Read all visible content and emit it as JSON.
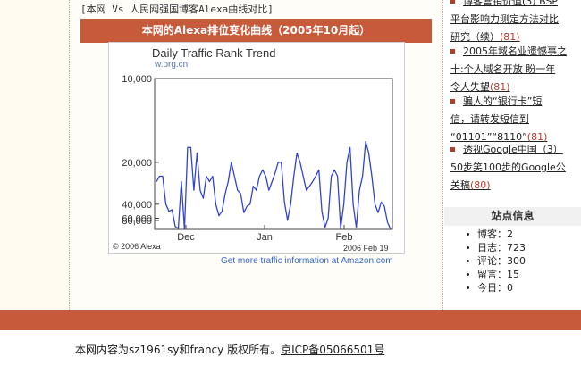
{
  "main": {
    "compare_caption": "[本网 Vs 人民网强国博客Alexa曲线对比]",
    "section_title": "本网的Alexa排位变化曲线（2005年10月起）",
    "more_link": "Get more traffic information at Amazon.com"
  },
  "chart_data": {
    "type": "line",
    "title": "Daily Traffic Rank Trend",
    "subtitle": "w.org.cn",
    "y_tick_labels": [
      "10,000",
      "20,000",
      "40,000",
      "60,000",
      "80,000"
    ],
    "y_tick_values": [
      10000,
      20000,
      40000,
      60000,
      80000
    ],
    "y_scale": "reciprocal",
    "y_inverted": true,
    "x_tick_labels": [
      "Dec",
      "Jan",
      "Feb"
    ],
    "copyright": "© 2006 Alexa",
    "date_label": "2006 Feb 19",
    "line_color": "#3344cc",
    "series": [
      {
        "values": [
          26000,
          24000,
          24000,
          40000,
          48000,
          46000,
          85000,
          95000,
          26000,
          100000,
          17000,
          17000,
          30000,
          18000,
          30000,
          35000,
          24000,
          26000,
          24000,
          40000,
          55000,
          48000,
          32000,
          26000,
          20000,
          24000,
          30000,
          32000,
          50000,
          42000,
          40000,
          28000,
          30000,
          24000,
          22000,
          24000,
          30000,
          26000,
          23000,
          20000,
          20000,
          38000,
          65000,
          40000,
          24000,
          18000,
          20000,
          24000,
          30000,
          28000,
          26000,
          24000,
          22000,
          48000,
          90000,
          60000,
          24000,
          22000,
          24000,
          95000,
          40000,
          20000,
          17000,
          40000,
          90000,
          30000,
          24000,
          16000,
          18000,
          24000,
          40000,
          50000,
          38000,
          42000,
          70000,
          100000
        ]
      }
    ]
  },
  "sidebar": {
    "items": [
      {
        "lines": [
          "博客营销价值(3) BSP",
          "平台影响力测定方法对比",
          "研究（续）"
        ],
        "count": "(81)"
      },
      {
        "lines": [
          "2005年域名业遗憾事之",
          "十:个人域名开放 盼一年",
          "令人失望"
        ],
        "count": "(81)"
      },
      {
        "lines": [
          "骗人的“银行卡”短",
          "信，请转发短信到",
          "“01101”“8110”"
        ],
        "count": "(81)"
      },
      {
        "lines": [
          "透视Google中国（3）",
          "50步笑100步的Google公",
          "关稿"
        ],
        "count": "(80)"
      }
    ],
    "stats_title": "站点信息",
    "stats": [
      {
        "label": "博客：",
        "value": "2"
      },
      {
        "label": "日志：",
        "value": "723"
      },
      {
        "label": "评论：",
        "value": "300"
      },
      {
        "label": "留言：",
        "value": "15"
      },
      {
        "label": "今日：",
        "value": "0"
      }
    ]
  },
  "footer": {
    "text": "本网内容为sz1961sy和francy 版权所有。",
    "icp_link": "京ICP备05066501号"
  },
  "colors": {
    "accent": "#c85a3c",
    "count": "#b43c2a",
    "chart_line": "#3344cc",
    "link": "#3366cc"
  }
}
